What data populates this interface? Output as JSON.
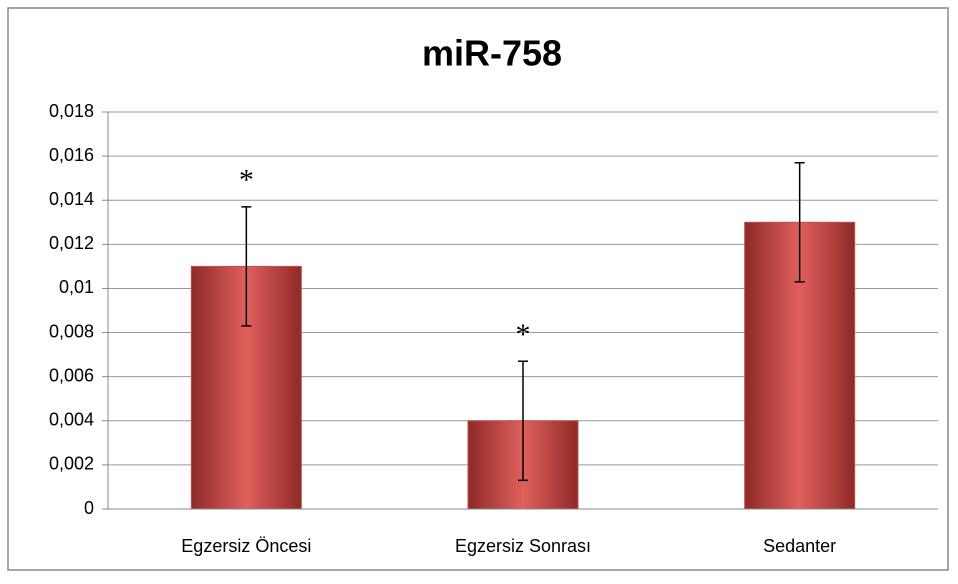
{
  "chart_data": {
    "type": "bar",
    "title": "miR-758",
    "categories": [
      "Egzersiz Öncesi",
      "Egzersiz Sonrası",
      "Sedanter"
    ],
    "values": [
      0.011,
      0.004,
      0.013
    ],
    "errors": [
      0.0027,
      0.0027,
      0.0027
    ],
    "color": "#c0504d",
    "ylim": [
      0,
      0.018
    ],
    "yticks": [
      0,
      {
        "value": 0.002,
        "label": "0,002"
      },
      {
        "value": 0.004,
        "label": "0,004"
      },
      {
        "value": 0.006,
        "label": "0,006"
      },
      {
        "value": 0.008,
        "label": "0,008"
      },
      {
        "value": 0.01,
        "label": "0,01"
      },
      {
        "value": 0.012,
        "label": "0,012"
      },
      {
        "value": 0.014,
        "label": "0,014"
      },
      {
        "value": 0.016,
        "label": "0,016"
      },
      {
        "value": 0.018,
        "label": "0,018"
      }
    ],
    "grid": true,
    "annotations": [
      {
        "text": "*",
        "category": "Egzersiz Öncesi"
      },
      {
        "text": "*",
        "category": "Egzersiz Sonrası"
      }
    ]
  }
}
